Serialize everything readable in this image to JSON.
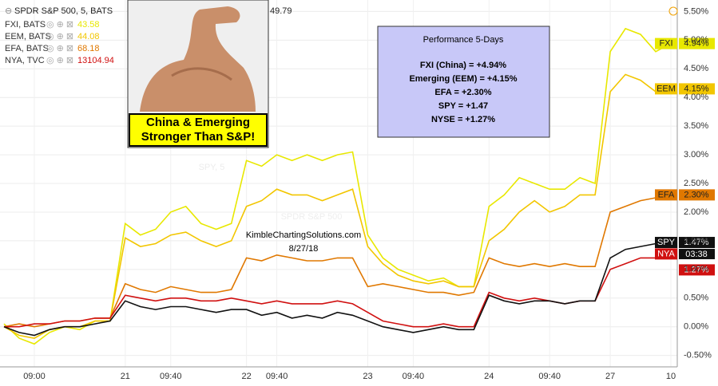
{
  "chart_data": {
    "type": "line",
    "header": {
      "symbol": "SPDR S&P 500, 5, BATS",
      "value": "49.79"
    },
    "watermark": {
      "symbol": "SPY, 5",
      "name": "SPDR S&P 500"
    },
    "image_caption": "China & Emerging Stronger Than S&P!",
    "info_box": {
      "title": "Performance 5-Days",
      "lines": [
        "FXI (China) = +4.94%",
        "Emerging (EEM) = +4.15%",
        "EFA = +2.30%",
        "SPY = +1.47",
        "NYSE = +1.27%"
      ]
    },
    "annotations": [
      "KimbleChartingSolutions.com",
      "8/27/18"
    ],
    "countdown": "03:38",
    "categories": [
      null,
      null,
      "09:00",
      null,
      null,
      null,
      null,
      null,
      "21",
      null,
      null,
      "09:40",
      null,
      null,
      null,
      null,
      "22",
      null,
      "09:40",
      null,
      null,
      null,
      null,
      null,
      "23",
      null,
      null,
      "09:40",
      null,
      null,
      null,
      null,
      "24",
      null,
      null,
      null,
      "09:40",
      null,
      null,
      null,
      "27",
      null,
      null,
      null,
      "10"
    ],
    "series": [
      {
        "name": "FXI",
        "legend": "FXI, BATS",
        "legend_value": "43.58",
        "end_label": "4.94%",
        "color": "#e8e800",
        "values": [
          0.05,
          -0.2,
          -0.3,
          -0.1,
          0.0,
          -0.05,
          0.1,
          0.1,
          1.8,
          1.6,
          1.7,
          2.0,
          2.1,
          1.8,
          1.7,
          1.8,
          2.9,
          2.8,
          3.0,
          2.9,
          3.0,
          2.9,
          3.0,
          3.05,
          1.6,
          1.2,
          1.0,
          0.9,
          0.8,
          0.85,
          0.7,
          0.7,
          2.1,
          2.3,
          2.6,
          2.5,
          2.4,
          2.4,
          2.6,
          2.5,
          4.8,
          5.2,
          5.1,
          4.8,
          4.94
        ]
      },
      {
        "name": "EEM",
        "legend": "EEM, BATS",
        "legend_value": "44.08",
        "end_label": "4.15%",
        "color": "#f2c600",
        "values": [
          0.0,
          -0.15,
          -0.2,
          -0.05,
          0.0,
          0.0,
          0.1,
          0.1,
          1.55,
          1.4,
          1.45,
          1.6,
          1.65,
          1.5,
          1.4,
          1.5,
          2.1,
          2.2,
          2.4,
          2.3,
          2.3,
          2.2,
          2.3,
          2.4,
          1.4,
          1.1,
          0.9,
          0.8,
          0.75,
          0.8,
          0.7,
          0.7,
          1.5,
          1.7,
          2.0,
          2.2,
          2.0,
          2.1,
          2.3,
          2.3,
          4.1,
          4.4,
          4.3,
          4.1,
          4.15
        ]
      },
      {
        "name": "EFA",
        "legend": "EFA, BATS",
        "legend_value": "68.18",
        "end_label": "2.30%",
        "color": "#e07800",
        "values": [
          0.0,
          0.05,
          0.0,
          0.05,
          0.1,
          0.1,
          0.15,
          0.15,
          0.75,
          0.65,
          0.6,
          0.7,
          0.65,
          0.6,
          0.6,
          0.65,
          1.2,
          1.15,
          1.25,
          1.2,
          1.15,
          1.15,
          1.2,
          1.2,
          0.7,
          0.75,
          0.7,
          0.65,
          0.6,
          0.6,
          0.55,
          0.6,
          1.2,
          1.1,
          1.05,
          1.1,
          1.05,
          1.1,
          1.05,
          1.05,
          2.0,
          2.1,
          2.2,
          2.25,
          2.3
        ]
      },
      {
        "name": "NYA",
        "legend": "NYA, TVC",
        "legend_value": "13104.94",
        "end_label": "1.27%",
        "color": "#d01010",
        "values": [
          0.0,
          0.0,
          0.05,
          0.05,
          0.1,
          0.1,
          0.15,
          0.15,
          0.55,
          0.5,
          0.45,
          0.5,
          0.5,
          0.45,
          0.45,
          0.5,
          0.45,
          0.4,
          0.45,
          0.4,
          0.4,
          0.4,
          0.45,
          0.4,
          0.25,
          0.1,
          0.05,
          0.0,
          0.0,
          0.05,
          0.0,
          0.0,
          0.6,
          0.5,
          0.45,
          0.5,
          0.45,
          0.4,
          0.45,
          0.45,
          1.0,
          1.1,
          1.2,
          1.2,
          1.27
        ]
      },
      {
        "name": "SPY",
        "end_label": "1.47%",
        "color": "#111111",
        "values": [
          0.0,
          -0.1,
          -0.15,
          -0.05,
          0.0,
          0.0,
          0.05,
          0.1,
          0.45,
          0.35,
          0.3,
          0.35,
          0.35,
          0.3,
          0.25,
          0.3,
          0.3,
          0.2,
          0.25,
          0.15,
          0.2,
          0.15,
          0.25,
          0.2,
          0.1,
          0.0,
          -0.05,
          -0.1,
          -0.05,
          0.0,
          -0.05,
          -0.05,
          0.55,
          0.45,
          0.4,
          0.45,
          0.45,
          0.4,
          0.45,
          0.45,
          1.2,
          1.35,
          1.4,
          1.45,
          1.47
        ]
      }
    ],
    "ylim": [
      -0.7,
      5.7
    ],
    "yticks": [
      {
        "value": -0.5,
        "label": "-0.50%"
      },
      {
        "value": 0,
        "label": "0.00%"
      },
      {
        "value": 0.5,
        "label": "0.50%"
      },
      {
        "value": 1,
        "label": "1.00%"
      },
      {
        "value": 1.5,
        "label": "1.50%"
      },
      {
        "value": 2,
        "label": "2.00%"
      },
      {
        "value": 2.5,
        "label": "2.50%"
      },
      {
        "value": 3,
        "label": "3.00%"
      },
      {
        "value": 3.5,
        "label": "3.50%"
      },
      {
        "value": 4,
        "label": "4.00%"
      },
      {
        "value": 4.5,
        "label": "4.50%"
      },
      {
        "value": 5,
        "label": "5.00%"
      },
      {
        "value": 5.5,
        "label": "5.50%"
      }
    ],
    "grid": true
  }
}
